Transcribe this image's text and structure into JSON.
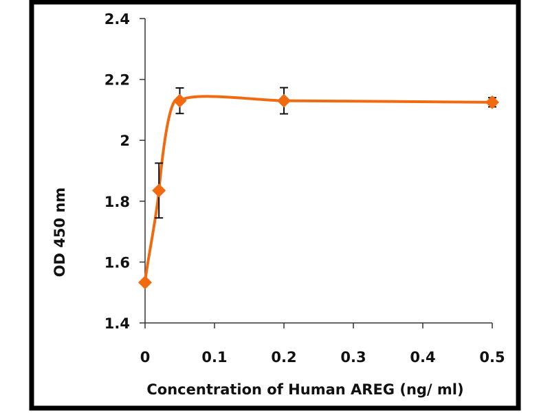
{
  "chart_data": {
    "type": "line",
    "title": "",
    "xlabel": "Concentration of Human AREG (ng/ ml)",
    "ylabel": "OD  450 nm",
    "xlim": [
      0,
      0.5
    ],
    "ylim": [
      1.4,
      2.4
    ],
    "xticks": [
      "0",
      "0.1",
      "0.2",
      "0.3",
      "0.4",
      "0.5"
    ],
    "xtick_values": [
      0,
      0.1,
      0.2,
      0.3,
      0.4,
      0.5
    ],
    "yticks": [
      "1.4",
      "1.6",
      "1.8",
      "2",
      "2.2",
      "2.4"
    ],
    "ytick_values": [
      1.4,
      1.6,
      1.8,
      2.0,
      2.2,
      2.4
    ],
    "grid": false,
    "legend": "none",
    "series": [
      {
        "name": "OD 450 nm",
        "color": "#f26a10",
        "marker": "diamond",
        "smooth": true,
        "x": [
          0,
          0.02,
          0.05,
          0.2,
          0.5
        ],
        "y": [
          1.533,
          1.835,
          2.13,
          2.13,
          2.125
        ],
        "error": [
          0,
          0.09,
          0.042,
          0.043,
          0.015
        ]
      }
    ]
  }
}
